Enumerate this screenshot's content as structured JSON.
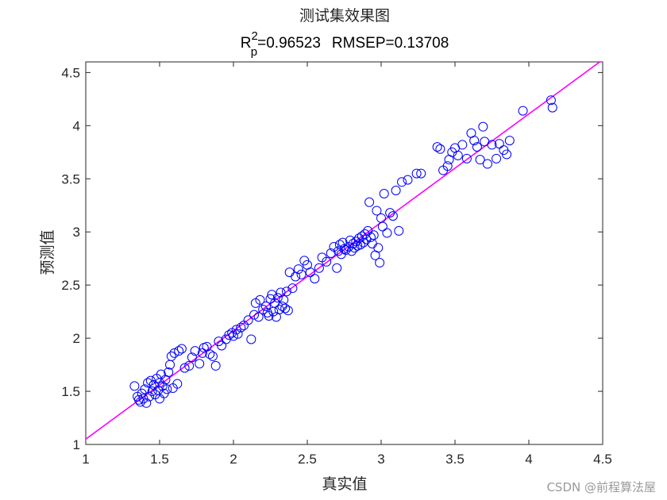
{
  "chart_data": {
    "type": "scatter",
    "title": "测试集效果图",
    "subtitle": {
      "r_symbol": "R",
      "r_sup": "2",
      "r_sub": "p",
      "r_value": "=0.96523",
      "rmsep": "RMSEP=0.13708"
    },
    "xlabel": "真实值",
    "ylabel": "预测值",
    "xlim": [
      1,
      4.5
    ],
    "ylim": [
      1,
      4.6
    ],
    "xticks": [
      "1",
      "1.5",
      "2",
      "2.5",
      "3",
      "3.5",
      "4",
      "4.5"
    ],
    "yticks": [
      "1",
      "1.5",
      "2",
      "2.5",
      "3",
      "3.5",
      "4",
      "4.5"
    ],
    "grid": false,
    "marker_color": "#0000ff",
    "line_color": "#ff00ff",
    "fit_line": {
      "x": [
        1,
        4.5
      ],
      "y": [
        1.05,
        4.62
      ]
    },
    "points": [
      [
        1.33,
        1.55
      ],
      [
        1.35,
        1.45
      ],
      [
        1.36,
        1.42
      ],
      [
        1.37,
        1.4
      ],
      [
        1.38,
        1.48
      ],
      [
        1.39,
        1.43
      ],
      [
        1.4,
        1.52
      ],
      [
        1.41,
        1.39
      ],
      [
        1.42,
        1.58
      ],
      [
        1.43,
        1.45
      ],
      [
        1.44,
        1.6
      ],
      [
        1.45,
        1.5
      ],
      [
        1.46,
        1.56
      ],
      [
        1.47,
        1.47
      ],
      [
        1.48,
        1.62
      ],
      [
        1.49,
        1.51
      ],
      [
        1.5,
        1.43
      ],
      [
        1.5,
        1.58
      ],
      [
        1.51,
        1.66
      ],
      [
        1.52,
        1.55
      ],
      [
        1.53,
        1.48
      ],
      [
        1.54,
        1.61
      ],
      [
        1.55,
        1.52
      ],
      [
        1.56,
        1.68
      ],
      [
        1.57,
        1.75
      ],
      [
        1.58,
        1.83
      ],
      [
        1.59,
        1.53
      ],
      [
        1.6,
        1.86
      ],
      [
        1.62,
        1.57
      ],
      [
        1.63,
        1.88
      ],
      [
        1.65,
        1.9
      ],
      [
        1.67,
        1.72
      ],
      [
        1.7,
        1.74
      ],
      [
        1.72,
        1.82
      ],
      [
        1.74,
        1.88
      ],
      [
        1.77,
        1.76
      ],
      [
        1.79,
        1.86
      ],
      [
        1.8,
        1.91
      ],
      [
        1.82,
        1.92
      ],
      [
        1.84,
        1.85
      ],
      [
        1.86,
        1.83
      ],
      [
        1.88,
        1.74
      ],
      [
        1.9,
        1.97
      ],
      [
        1.92,
        1.93
      ],
      [
        1.95,
        1.99
      ],
      [
        1.97,
        2.03
      ],
      [
        1.99,
        2.05
      ],
      [
        2.0,
        2.02
      ],
      [
        2.02,
        2.08
      ],
      [
        2.03,
        2.04
      ],
      [
        2.05,
        2.1
      ],
      [
        2.07,
        2.12
      ],
      [
        2.1,
        2.17
      ],
      [
        2.12,
        1.99
      ],
      [
        2.14,
        2.22
      ],
      [
        2.15,
        2.33
      ],
      [
        2.17,
        2.2
      ],
      [
        2.18,
        2.36
      ],
      [
        2.2,
        2.27
      ],
      [
        2.22,
        2.3
      ],
      [
        2.23,
        2.24
      ],
      [
        2.24,
        2.21
      ],
      [
        2.25,
        2.37
      ],
      [
        2.26,
        2.41
      ],
      [
        2.27,
        2.25
      ],
      [
        2.28,
        2.33
      ],
      [
        2.29,
        2.2
      ],
      [
        2.3,
        2.38
      ],
      [
        2.31,
        2.27
      ],
      [
        2.32,
        2.43
      ],
      [
        2.33,
        2.3
      ],
      [
        2.34,
        2.36
      ],
      [
        2.35,
        2.28
      ],
      [
        2.36,
        2.44
      ],
      [
        2.37,
        2.26
      ],
      [
        2.38,
        2.62
      ],
      [
        2.4,
        2.47
      ],
      [
        2.42,
        2.58
      ],
      [
        2.44,
        2.65
      ],
      [
        2.46,
        2.6
      ],
      [
        2.48,
        2.73
      ],
      [
        2.5,
        2.69
      ],
      [
        2.52,
        2.62
      ],
      [
        2.55,
        2.56
      ],
      [
        2.58,
        2.66
      ],
      [
        2.6,
        2.76
      ],
      [
        2.63,
        2.72
      ],
      [
        2.66,
        2.8
      ],
      [
        2.68,
        2.86
      ],
      [
        2.7,
        2.66
      ],
      [
        2.71,
        2.82
      ],
      [
        2.72,
        2.88
      ],
      [
        2.73,
        2.79
      ],
      [
        2.74,
        2.9
      ],
      [
        2.75,
        2.84
      ],
      [
        2.76,
        2.83
      ],
      [
        2.78,
        2.86
      ],
      [
        2.79,
        2.92
      ],
      [
        2.8,
        2.82
      ],
      [
        2.81,
        2.89
      ],
      [
        2.82,
        2.85
      ],
      [
        2.83,
        2.91
      ],
      [
        2.84,
        2.87
      ],
      [
        2.85,
        2.94
      ],
      [
        2.86,
        2.88
      ],
      [
        2.87,
        2.96
      ],
      [
        2.88,
        2.9
      ],
      [
        2.89,
        2.98
      ],
      [
        2.9,
        2.93
      ],
      [
        2.91,
        3.01
      ],
      [
        2.92,
        3.28
      ],
      [
        2.93,
        2.95
      ],
      [
        2.94,
        2.89
      ],
      [
        2.95,
        2.97
      ],
      [
        2.96,
        2.78
      ],
      [
        2.97,
        3.2
      ],
      [
        2.98,
        2.85
      ],
      [
        2.99,
        2.71
      ],
      [
        3.0,
        3.13
      ],
      [
        3.01,
        3.05
      ],
      [
        3.02,
        3.36
      ],
      [
        3.04,
        2.99
      ],
      [
        3.06,
        3.18
      ],
      [
        3.08,
        3.15
      ],
      [
        3.1,
        3.39
      ],
      [
        3.12,
        3.01
      ],
      [
        3.14,
        3.47
      ],
      [
        3.18,
        3.49
      ],
      [
        3.24,
        3.55
      ],
      [
        3.27,
        3.55
      ],
      [
        3.38,
        3.8
      ],
      [
        3.4,
        3.78
      ],
      [
        3.42,
        3.58
      ],
      [
        3.45,
        3.62
      ],
      [
        3.46,
        3.68
      ],
      [
        3.48,
        3.75
      ],
      [
        3.5,
        3.79
      ],
      [
        3.52,
        3.72
      ],
      [
        3.55,
        3.82
      ],
      [
        3.58,
        3.69
      ],
      [
        3.61,
        3.93
      ],
      [
        3.63,
        3.86
      ],
      [
        3.65,
        3.8
      ],
      [
        3.67,
        3.68
      ],
      [
        3.69,
        3.99
      ],
      [
        3.7,
        3.85
      ],
      [
        3.72,
        3.64
      ],
      [
        3.75,
        3.82
      ],
      [
        3.78,
        3.69
      ],
      [
        3.8,
        3.83
      ],
      [
        3.83,
        3.77
      ],
      [
        3.85,
        3.73
      ],
      [
        3.87,
        3.86
      ],
      [
        3.96,
        4.14
      ],
      [
        4.15,
        4.24
      ],
      [
        4.16,
        4.17
      ]
    ]
  },
  "watermark": "CSDN @前程算法屋"
}
